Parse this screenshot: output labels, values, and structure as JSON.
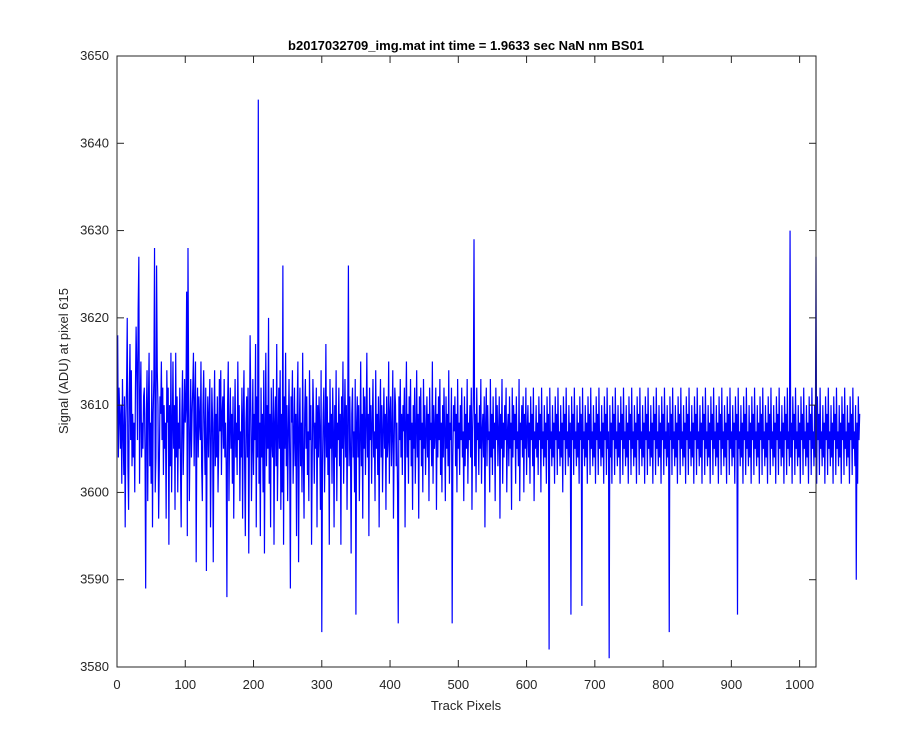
{
  "chart_data": {
    "type": "line",
    "title": "b2017032709_img.mat int time = 1.9633 sec  NaN nm BS01",
    "xlabel": "Track Pixels",
    "ylabel": "Signal (ADU) at pixel 615",
    "xlim": [
      0,
      1024
    ],
    "ylim": [
      3580,
      3650
    ],
    "xticks": [
      "0",
      "100",
      "200",
      "300",
      "400",
      "500",
      "600",
      "700",
      "800",
      "900",
      "1000"
    ],
    "yticks": [
      "3580",
      "3590",
      "3600",
      "3610",
      "3620",
      "3630",
      "3640",
      "3650"
    ],
    "grid": false,
    "series": [
      {
        "color": "#0000ff",
        "x_start": 1,
        "x_step": 1,
        "y": [
          3618,
          3604,
          3612,
          3609,
          3605,
          3610,
          3601,
          3613,
          3607,
          3602,
          3611,
          3596,
          3608,
          3612,
          3620,
          3603,
          3598,
          3611,
          3617,
          3606,
          3614,
          3603,
          3609,
          3604,
          3608,
          3600,
          3612,
          3619,
          3614,
          3606,
          3621,
          3627,
          3601,
          3610,
          3615,
          3604,
          3608,
          3605,
          3611,
          3612,
          3605,
          3589,
          3609,
          3614,
          3599,
          3610,
          3616,
          3603,
          3608,
          3601,
          3614,
          3596,
          3609,
          3613,
          3628,
          3600,
          3604,
          3626,
          3614,
          3610,
          3597,
          3603,
          3611,
          3609,
          3615,
          3606,
          3612,
          3602,
          3610,
          3605,
          3608,
          3597,
          3614,
          3608,
          3612,
          3594,
          3610,
          3603,
          3616,
          3600,
          3607,
          3615,
          3605,
          3610,
          3598,
          3616,
          3604,
          3611,
          3600,
          3608,
          3605,
          3612,
          3603,
          3596,
          3609,
          3614,
          3602,
          3607,
          3613,
          3608,
          3610,
          3623,
          3595,
          3628,
          3611,
          3599,
          3606,
          3613,
          3604,
          3609,
          3612,
          3616,
          3603,
          3610,
          3615,
          3592,
          3607,
          3612,
          3604,
          3611,
          3608,
          3606,
          3615,
          3603,
          3599,
          3610,
          3614,
          3607,
          3602,
          3612,
          3591,
          3606,
          3611,
          3604,
          3609,
          3613,
          3596,
          3605,
          3612,
          3608,
          3592,
          3607,
          3614,
          3603,
          3609,
          3604,
          3611,
          3600,
          3605,
          3613,
          3607,
          3614,
          3602,
          3609,
          3611,
          3605,
          3613,
          3604,
          3608,
          3603,
          3588,
          3610,
          3615,
          3599,
          3607,
          3612,
          3605,
          3609,
          3601,
          3611,
          3597,
          3606,
          3613,
          3604,
          3608,
          3602,
          3615,
          3606,
          3610,
          3599,
          3607,
          3604,
          3612,
          3597,
          3609,
          3614,
          3603,
          3595,
          3608,
          3611,
          3604,
          3612,
          3593,
          3606,
          3618,
          3610,
          3599,
          3605,
          3613,
          3602,
          3609,
          3606,
          3617,
          3596,
          3611,
          3604,
          3645,
          3601,
          3608,
          3595,
          3612,
          3604,
          3609,
          3600,
          3614,
          3593,
          3607,
          3616,
          3603,
          3610,
          3605,
          3620,
          3601,
          3609,
          3596,
          3612,
          3606,
          3604,
          3613,
          3594,
          3608,
          3611,
          3603,
          3617,
          3599,
          3606,
          3612,
          3605,
          3614,
          3598,
          3609,
          3600,
          3626,
          3594,
          3611,
          3605,
          3616,
          3603,
          3610,
          3599,
          3607,
          3613,
          3604,
          3589,
          3611,
          3608,
          3614,
          3601,
          3606,
          3612,
          3603,
          3609,
          3595,
          3610,
          3615,
          3592,
          3607,
          3612,
          3603,
          3608,
          3600,
          3616,
          3604,
          3597,
          3609,
          3613,
          3605,
          3611,
          3602,
          3607,
          3599,
          3614,
          3606,
          3610,
          3594,
          3604,
          3613,
          3609,
          3601,
          3608,
          3605,
          3612,
          3596,
          3610,
          3604,
          3611,
          3607,
          3598,
          3614,
          3584,
          3603,
          3609,
          3612,
          3600,
          3606,
          3617,
          3604,
          3611,
          3602,
          3608,
          3594,
          3613,
          3605,
          3609,
          3601,
          3612,
          3607,
          3596,
          3610,
          3604,
          3614,
          3599,
          3608,
          3606,
          3612,
          3603,
          3609,
          3594,
          3611,
          3605,
          3615,
          3601,
          3607,
          3613,
          3604,
          3610,
          3598,
          3608,
          3626,
          3603,
          3611,
          3605,
          3593,
          3609,
          3612,
          3604,
          3607,
          3600,
          3613,
          3586,
          3608,
          3611,
          3604,
          3610,
          3599,
          3606,
          3615,
          3603,
          3609,
          3597,
          3612,
          3605,
          3611,
          3602,
          3608,
          3616,
          3604,
          3609,
          3595,
          3612,
          3606,
          3610,
          3601,
          3608,
          3613,
          3604,
          3607,
          3599,
          3614,
          3605,
          3609,
          3602,
          3611,
          3596,
          3608,
          3613,
          3604,
          3610,
          3600,
          3607,
          3612,
          3605,
          3609,
          3598,
          3611,
          3604,
          3606,
          3615,
          3601,
          3609,
          3611,
          3603,
          3607,
          3614,
          3597,
          3605,
          3612,
          3610,
          3603,
          3608,
          3600,
          3585,
          3611,
          3606,
          3613,
          3604,
          3609,
          3602,
          3610,
          3607,
          3612,
          3596,
          3608,
          3615,
          3604,
          3609,
          3601,
          3611,
          3606,
          3613,
          3603,
          3608,
          3598,
          3610,
          3605,
          3612,
          3601,
          3607,
          3614,
          3604,
          3609,
          3597,
          3611,
          3606,
          3612,
          3603,
          3608,
          3600,
          3613,
          3605,
          3610,
          3602,
          3607,
          3611,
          3604,
          3609,
          3599,
          3612,
          3606,
          3608,
          3603,
          3615,
          3601,
          3610,
          3605,
          3607,
          3612,
          3598,
          3609,
          3604,
          3611,
          3606,
          3613,
          3602,
          3608,
          3600,
          3610,
          3604,
          3612,
          3607,
          3599,
          3611,
          3605,
          3609,
          3603,
          3614,
          3601,
          3608,
          3606,
          3612,
          3585,
          3604,
          3610,
          3607,
          3611,
          3603,
          3609,
          3600,
          3613,
          3605,
          3608,
          3602,
          3610,
          3606,
          3612,
          3604,
          3607,
          3599,
          3611,
          3603,
          3609,
          3605,
          3613,
          3601,
          3608,
          3606,
          3610,
          3604,
          3612,
          3598,
          3607,
          3611,
          3629,
          3603,
          3609,
          3600,
          3612,
          3606,
          3608,
          3602,
          3610,
          3605,
          3613,
          3601,
          3607,
          3609,
          3604,
          3611,
          3596,
          3608,
          3612,
          3603,
          3610,
          3606,
          3607,
          3600,
          3613,
          3604,
          3609,
          3602,
          3611,
          3605,
          3608,
          3599,
          3612,
          3606,
          3610,
          3603,
          3607,
          3611,
          3597,
          3609,
          3605,
          3613,
          3601,
          3608,
          3604,
          3610,
          3606,
          3612,
          3600,
          3607,
          3609,
          3603,
          3611,
          3605,
          3608,
          3598,
          3612,
          3604,
          3610,
          3606,
          3609,
          3601,
          3611,
          3605,
          3607,
          3603,
          3613,
          3599,
          3608,
          3606,
          3610,
          3604,
          3611,
          3600,
          3609,
          3605,
          3612,
          3602,
          3607,
          3610,
          3604,
          3608,
          3601,
          3611,
          3606,
          3609,
          3603,
          3612,
          3599,
          3607,
          3605,
          3610,
          3604,
          3608,
          3602,
          3611,
          3606,
          3609,
          3600,
          3612,
          3605,
          3607,
          3603,
          3610,
          3604,
          3608,
          3601,
          3611,
          3606,
          3609,
          3582,
          3612,
          3605,
          3607,
          3603,
          3610,
          3604,
          3608,
          3601,
          3611,
          3606,
          3609,
          3602,
          3612,
          3605,
          3607,
          3603,
          3610,
          3604,
          3608,
          3600,
          3611,
          3606,
          3609,
          3602,
          3612,
          3605,
          3607,
          3603,
          3610,
          3604,
          3608,
          3586,
          3611,
          3606,
          3609,
          3602,
          3612,
          3605,
          3607,
          3603,
          3610,
          3604,
          3608,
          3601,
          3611,
          3606,
          3609,
          3587,
          3612,
          3605,
          3607,
          3603,
          3610,
          3604,
          3608,
          3601,
          3611,
          3606,
          3609,
          3602,
          3612,
          3605,
          3607,
          3603,
          3610,
          3604,
          3608,
          3601,
          3611,
          3606,
          3609,
          3602,
          3612,
          3605,
          3607,
          3603,
          3610,
          3604,
          3608,
          3601,
          3611,
          3606,
          3609,
          3602,
          3612,
          3605,
          3607,
          3581,
          3610,
          3604,
          3608,
          3601,
          3611,
          3606,
          3609,
          3602,
          3612,
          3605,
          3607,
          3603,
          3610,
          3604,
          3608,
          3601,
          3611,
          3606,
          3609,
          3602,
          3612,
          3605,
          3607,
          3603,
          3610,
          3604,
          3608,
          3601,
          3611,
          3606,
          3609,
          3602,
          3612,
          3605,
          3607,
          3603,
          3610,
          3604,
          3608,
          3601,
          3611,
          3606,
          3609,
          3602,
          3612,
          3605,
          3607,
          3603,
          3610,
          3604,
          3608,
          3601,
          3611,
          3606,
          3609,
          3602,
          3612,
          3605,
          3607,
          3603,
          3610,
          3604,
          3608,
          3601,
          3611,
          3606,
          3609,
          3602,
          3612,
          3605,
          3607,
          3603,
          3610,
          3604,
          3608,
          3601,
          3611,
          3606,
          3609,
          3602,
          3612,
          3605,
          3607,
          3603,
          3610,
          3604,
          3608,
          3584,
          3611,
          3606,
          3609,
          3602,
          3612,
          3605,
          3607,
          3603,
          3610,
          3604,
          3608,
          3601,
          3611,
          3606,
          3609,
          3602,
          3612,
          3605,
          3607,
          3603,
          3610,
          3604,
          3608,
          3601,
          3611,
          3606,
          3609,
          3602,
          3612,
          3605,
          3607,
          3603,
          3610,
          3604,
          3608,
          3601,
          3611,
          3606,
          3609,
          3602,
          3612,
          3605,
          3607,
          3603,
          3610,
          3604,
          3608,
          3601,
          3611,
          3606,
          3609,
          3602,
          3612,
          3605,
          3607,
          3603,
          3610,
          3604,
          3608,
          3601,
          3611,
          3606,
          3609,
          3602,
          3612,
          3605,
          3607,
          3603,
          3610,
          3604,
          3608,
          3601,
          3611,
          3606,
          3609,
          3602,
          3612,
          3605,
          3607,
          3603,
          3610,
          3604,
          3608,
          3601,
          3611,
          3606,
          3609,
          3602,
          3612,
          3605,
          3607,
          3603,
          3610,
          3604,
          3608,
          3601,
          3611,
          3606,
          3609,
          3586,
          3612,
          3605,
          3607,
          3603,
          3610,
          3604,
          3608,
          3601,
          3611,
          3606,
          3609,
          3602,
          3612,
          3605,
          3607,
          3603,
          3610,
          3604,
          3608,
          3601,
          3611,
          3606,
          3609,
          3602,
          3612,
          3605,
          3607,
          3603,
          3610,
          3604,
          3608,
          3601,
          3611,
          3606,
          3609,
          3602,
          3612,
          3605,
          3607,
          3603,
          3610,
          3604,
          3608,
          3601,
          3611,
          3606,
          3609,
          3602,
          3612,
          3605,
          3607,
          3603,
          3610,
          3604,
          3608,
          3601,
          3611,
          3606,
          3609,
          3602,
          3612,
          3605,
          3607,
          3603,
          3610,
          3604,
          3608,
          3601,
          3611,
          3606,
          3609,
          3602,
          3612,
          3605,
          3607,
          3603,
          3630,
          3604,
          3608,
          3601,
          3611,
          3606,
          3609,
          3602,
          3612,
          3605,
          3607,
          3603,
          3610,
          3604,
          3608,
          3601,
          3611,
          3606,
          3609,
          3602,
          3612,
          3605,
          3607,
          3603,
          3610,
          3604,
          3608,
          3601,
          3611,
          3606,
          3609,
          3602,
          3612,
          3605,
          3607,
          3603,
          3610,
          3604,
          3627,
          3601,
          3611,
          3606,
          3609,
          3602,
          3612,
          3605,
          3607,
          3603,
          3610,
          3604,
          3608,
          3601,
          3611,
          3606,
          3609,
          3602,
          3612,
          3605,
          3607,
          3603,
          3610,
          3604,
          3608,
          3601,
          3611,
          3606,
          3609,
          3602,
          3612,
          3605,
          3607,
          3603,
          3610,
          3604,
          3608,
          3601,
          3611,
          3606,
          3609,
          3602,
          3612,
          3605,
          3607,
          3603,
          3610,
          3604,
          3608,
          3601,
          3611,
          3606,
          3609,
          3602,
          3612,
          3605,
          3607,
          3603,
          3610,
          3590,
          3608,
          3601,
          3611,
          3606,
          3609
        ]
      }
    ]
  }
}
